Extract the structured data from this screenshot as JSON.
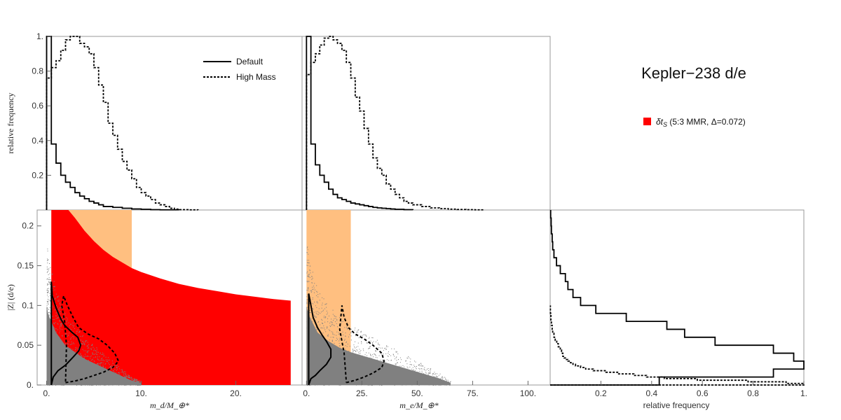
{
  "title": "Kepler−238 d/e",
  "legend": {
    "default_label": "Default",
    "high_mass_label": "High Mass",
    "region_label": "δt_S (5:3 MMR, Δ=0.072)",
    "region_symbol": "δt",
    "region_sub": "S",
    "region_rest": " (5:3 MMR, Δ=0.072)"
  },
  "colors": {
    "red_region": "#ff0000",
    "orange_region": "#ffbf80",
    "scatter": "#808080",
    "line": "#000000"
  },
  "chart_data": [
    {
      "id": "hist_md",
      "type": "line",
      "style": "step histogram",
      "ylabel": "relative frequency",
      "xlim": [
        -1,
        27
      ],
      "ylim": [
        0,
        1.0
      ],
      "yticks": [
        0.2,
        0.4,
        0.6,
        0.8,
        1
      ],
      "ytick_labels": [
        "0.2",
        "0.4",
        "0.6",
        "0.8",
        "1."
      ],
      "series": [
        {
          "name": "Default",
          "bin_edges": [
            0,
            0.5,
            1,
            1.5,
            2,
            2.5,
            3,
            3.5,
            4,
            4.5,
            5,
            5.5,
            6,
            7,
            8,
            9,
            10,
            11,
            12,
            14
          ],
          "values": [
            1.0,
            0.38,
            0.27,
            0.2,
            0.16,
            0.13,
            0.1,
            0.08,
            0.065,
            0.05,
            0.04,
            0.03,
            0.02,
            0.015,
            0.01,
            0.006,
            0.004,
            0.002,
            0.001
          ]
        },
        {
          "name": "High Mass",
          "bin_edges": [
            0,
            0.5,
            1,
            1.5,
            2,
            2.5,
            3,
            3.5,
            4,
            4.5,
            5,
            5.5,
            6,
            6.5,
            7,
            7.5,
            8,
            8.5,
            9,
            9.5,
            10,
            10.5,
            11,
            11.5,
            12,
            12.5,
            13,
            13.5,
            14,
            15,
            16
          ],
          "values": [
            0.76,
            0.82,
            0.86,
            0.92,
            0.98,
            1.0,
            1.0,
            0.96,
            0.94,
            0.9,
            0.82,
            0.72,
            0.62,
            0.5,
            0.43,
            0.35,
            0.28,
            0.23,
            0.18,
            0.13,
            0.1,
            0.08,
            0.06,
            0.04,
            0.03,
            0.02,
            0.01,
            0.005,
            0.002,
            0.001
          ]
        }
      ]
    },
    {
      "id": "hist_me",
      "type": "line",
      "style": "step histogram",
      "xlim": [
        -2,
        110
      ],
      "ylim": [
        0,
        1.0
      ],
      "series": [
        {
          "name": "Default",
          "bin_edges": [
            0,
            2,
            4,
            6,
            8,
            10,
            12,
            14,
            16,
            18,
            20,
            22,
            24,
            26,
            28,
            30,
            32,
            34,
            36,
            38,
            40,
            44,
            48
          ],
          "values": [
            1.0,
            0.38,
            0.26,
            0.2,
            0.16,
            0.12,
            0.09,
            0.07,
            0.06,
            0.05,
            0.04,
            0.035,
            0.03,
            0.025,
            0.02,
            0.015,
            0.012,
            0.01,
            0.008,
            0.006,
            0.004,
            0.002
          ]
        },
        {
          "name": "High Mass",
          "bin_edges": [
            0,
            2,
            4,
            6,
            8,
            10,
            12,
            14,
            16,
            18,
            20,
            22,
            24,
            26,
            28,
            30,
            32,
            34,
            36,
            38,
            40,
            42,
            44,
            46,
            48,
            52,
            56,
            60,
            64,
            68,
            72,
            76,
            80
          ],
          "values": [
            0.78,
            0.85,
            0.9,
            0.95,
            0.99,
            1.0,
            0.98,
            0.96,
            0.92,
            0.85,
            0.76,
            0.65,
            0.57,
            0.47,
            0.38,
            0.3,
            0.24,
            0.2,
            0.15,
            0.12,
            0.09,
            0.07,
            0.05,
            0.04,
            0.03,
            0.02,
            0.012,
            0.008,
            0.005,
            0.003,
            0.002,
            0.001
          ]
        }
      ]
    },
    {
      "id": "scatter_md",
      "type": "scatter",
      "xlabel": "m_d/M_⊕*",
      "ylabel": "|Z| (d/e)",
      "xlim": [
        -1,
        27
      ],
      "ylim": [
        0,
        0.22
      ],
      "xticks": [
        0,
        10,
        20
      ],
      "xtick_labels": [
        "0.",
        "10.",
        "20."
      ],
      "yticks": [
        0,
        0.05,
        0.1,
        0.15,
        0.2
      ],
      "ytick_labels": [
        "0.",
        "0.05",
        "0.1",
        "0.15",
        "0.2"
      ],
      "regions": [
        {
          "name": "orange",
          "x_range": [
            0.5,
            9
          ],
          "y_range": [
            0,
            0.22
          ]
        },
        {
          "name": "red",
          "x_min": 0.5,
          "x_max": 25.8,
          "upper_curve_x": [
            2.3,
            3,
            4,
            5,
            6,
            7,
            8,
            9,
            10,
            12,
            14,
            16,
            18,
            20,
            22,
            24,
            25.8
          ],
          "upper_curve_y": [
            0.22,
            0.21,
            0.194,
            0.181,
            0.17,
            0.161,
            0.154,
            0.147,
            0.142,
            0.134,
            0.127,
            0.122,
            0.118,
            0.114,
            0.111,
            0.108,
            0.106
          ]
        }
      ],
      "scatter_envelope": {
        "x": [
          0,
          0.2,
          1,
          2,
          3,
          4,
          5,
          6,
          7,
          8,
          9,
          10
        ],
        "y_max": [
          0.18,
          0.16,
          0.12,
          0.09,
          0.075,
          0.06,
          0.05,
          0.04,
          0.03,
          0.02,
          0.01,
          0.005
        ]
      },
      "contours": [
        {
          "name": "Default",
          "x": [
            0.5,
            0.7,
            1.2,
            2.0,
            2.8,
            3.4,
            3.6,
            3.3,
            2.6,
            1.9,
            1.5,
            1.0,
            0.6,
            0.5,
            0.5
          ],
          "y": [
            0.0,
            0.01,
            0.018,
            0.025,
            0.035,
            0.043,
            0.05,
            0.06,
            0.067,
            0.075,
            0.083,
            0.097,
            0.112,
            0.13,
            0.0
          ]
        },
        {
          "name": "High Mass",
          "x": [
            2.0,
            3.0,
            4.0,
            5.0,
            6.0,
            7.0,
            7.6,
            7.2,
            6.4,
            5.5,
            4.4,
            3.4,
            2.8,
            2.2,
            1.8,
            1.6,
            1.9,
            2.1,
            2.0
          ],
          "y": [
            0.003,
            0.005,
            0.008,
            0.012,
            0.016,
            0.022,
            0.03,
            0.04,
            0.05,
            0.058,
            0.064,
            0.072,
            0.085,
            0.1,
            0.112,
            0.1,
            0.08,
            0.05,
            0.003
          ]
        }
      ]
    },
    {
      "id": "scatter_me",
      "type": "scatter",
      "xlabel": "m_e/M_⊕*",
      "xlim": [
        -2,
        110
      ],
      "ylim": [
        0,
        0.22
      ],
      "xticks": [
        0,
        25,
        50,
        75,
        100
      ],
      "xtick_labels": [
        "0.",
        "25.",
        "50.",
        "75.",
        "100."
      ],
      "regions": [
        {
          "name": "orange",
          "x_range": [
            0,
            20
          ],
          "y_range": [
            0,
            0.22
          ]
        }
      ],
      "scatter_envelope": {
        "x": [
          0,
          1,
          5,
          10,
          15,
          20,
          30,
          40,
          50,
          60,
          65
        ],
        "y_max": [
          0.18,
          0.16,
          0.12,
          0.1,
          0.085,
          0.075,
          0.06,
          0.045,
          0.03,
          0.015,
          0.005
        ]
      },
      "contours": [
        {
          "name": "Default",
          "x": [
            1,
            2,
            4,
            6,
            9,
            11,
            11,
            9,
            7,
            5,
            3,
            2,
            1,
            1
          ],
          "y": [
            0.0,
            0.008,
            0.012,
            0.018,
            0.026,
            0.035,
            0.045,
            0.055,
            0.063,
            0.072,
            0.085,
            0.1,
            0.115,
            0.0
          ]
        },
        {
          "name": "High Mass",
          "x": [
            18,
            22,
            26,
            30,
            34,
            35,
            34,
            30,
            26,
            22,
            19,
            17,
            16,
            15,
            17,
            18
          ],
          "y": [
            0.003,
            0.006,
            0.01,
            0.015,
            0.022,
            0.03,
            0.04,
            0.05,
            0.058,
            0.064,
            0.072,
            0.085,
            0.1,
            0.07,
            0.04,
            0.003
          ]
        }
      ]
    },
    {
      "id": "hist_z",
      "type": "line",
      "style": "horizontal step histogram",
      "xlabel": "relative frequency",
      "xlim": [
        0,
        1.0
      ],
      "ylim": [
        0,
        0.22
      ],
      "xticks": [
        0.2,
        0.4,
        0.6,
        0.8,
        1
      ],
      "xtick_labels": [
        "0.2",
        "0.4",
        "0.6",
        "0.8",
        "1."
      ],
      "series": [
        {
          "name": "Default",
          "bin_edges": [
            0,
            0.01,
            0.02,
            0.03,
            0.04,
            0.05,
            0.06,
            0.07,
            0.08,
            0.09,
            0.1,
            0.11,
            0.12,
            0.13,
            0.14,
            0.15,
            0.16,
            0.17,
            0.18,
            0.19,
            0.2,
            0.21,
            0.22
          ],
          "values": [
            0.43,
            0.88,
            1.0,
            0.96,
            0.88,
            0.65,
            0.53,
            0.46,
            0.3,
            0.18,
            0.12,
            0.09,
            0.07,
            0.06,
            0.04,
            0.025,
            0.015,
            0.01,
            0.008,
            0.005,
            0.004,
            0.002
          ]
        },
        {
          "name": "High Mass",
          "bin_edges": [
            0,
            0.002,
            0.004,
            0.006,
            0.008,
            0.01,
            0.012,
            0.014,
            0.016,
            0.018,
            0.02,
            0.022,
            0.024,
            0.026,
            0.028,
            0.03,
            0.032,
            0.034,
            0.036,
            0.04,
            0.044,
            0.048,
            0.052,
            0.056,
            0.06,
            0.065,
            0.07,
            0.075,
            0.08,
            0.09,
            0.1
          ],
          "values": [
            1.0,
            0.93,
            0.78,
            0.58,
            0.45,
            0.38,
            0.33,
            0.27,
            0.22,
            0.17,
            0.14,
            0.12,
            0.1,
            0.09,
            0.08,
            0.07,
            0.06,
            0.055,
            0.05,
            0.045,
            0.04,
            0.032,
            0.026,
            0.02,
            0.015,
            0.01,
            0.008,
            0.005,
            0.003,
            0.001
          ]
        }
      ]
    }
  ]
}
